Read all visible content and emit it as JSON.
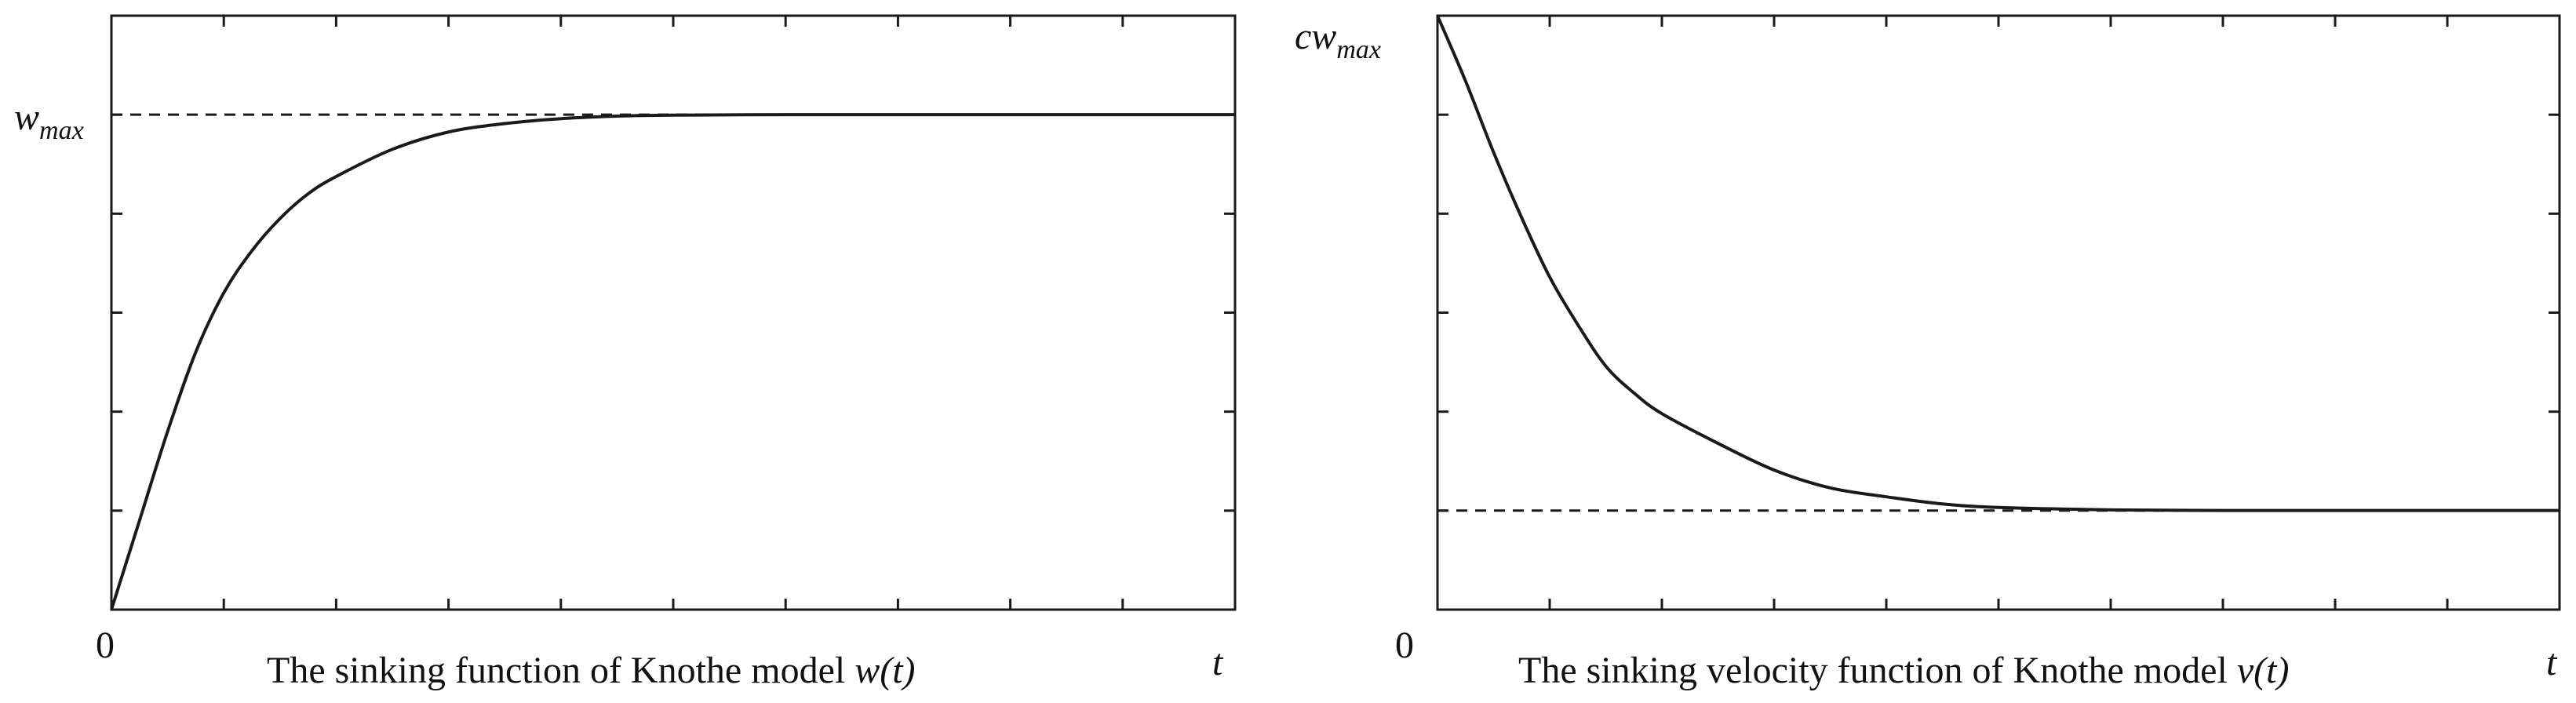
{
  "chart_data": [
    {
      "type": "line",
      "title": "The sinking function of Knothe model w(t)",
      "caption_prefix": "The sinking function of Knothe model ",
      "caption_func": "w(t)",
      "xlabel": "t",
      "origin_label": "0",
      "ylabel_top_base": "w",
      "ylabel_top_sub": "max",
      "xlim": [
        0,
        10
      ],
      "ylim": [
        0,
        1.2
      ],
      "x_ticks": [
        1,
        2,
        3,
        4,
        5,
        6,
        7,
        8,
        9
      ],
      "y_ticks": [
        0.2,
        0.4,
        0.6,
        0.8,
        1.0
      ],
      "reference_line_y": 1.0,
      "series": [
        {
          "name": "w(t)",
          "x": [
            0,
            0.25,
            0.5,
            0.75,
            1.0,
            1.25,
            1.5,
            1.75,
            2.0,
            2.5,
            3.0,
            3.5,
            4.0,
            4.5,
            5.0,
            6.0,
            7.0,
            8.0,
            9.0,
            10.0
          ],
          "y": [
            0,
            0.18,
            0.36,
            0.52,
            0.64,
            0.725,
            0.79,
            0.84,
            0.875,
            0.93,
            0.965,
            0.982,
            0.992,
            0.997,
            0.999,
            1.0,
            1.0,
            1.0,
            1.0,
            1.0
          ]
        }
      ]
    },
    {
      "type": "line",
      "title": "The sinking velocity function of Knothe model v(t)",
      "caption_prefix": "The sinking velocity function of Knothe model ",
      "caption_func": "v(t)",
      "xlabel": "t",
      "origin_label": "0",
      "ylabel_top_base": "cw",
      "ylabel_top_sub": "max",
      "xlim": [
        0,
        10
      ],
      "ylim": [
        0,
        1.0
      ],
      "x_ticks": [
        1,
        2,
        3,
        4,
        5,
        6,
        7,
        8,
        9
      ],
      "y_ticks": [
        0.1667,
        0.3333,
        0.5,
        0.6667,
        0.8333
      ],
      "reference_line_y": 0.1667,
      "series": [
        {
          "name": "v(t)",
          "x": [
            0,
            0.25,
            0.5,
            0.75,
            1.0,
            1.25,
            1.5,
            1.75,
            2.0,
            2.5,
            3.0,
            3.5,
            4.0,
            4.5,
            5.0,
            6.0,
            7.0,
            8.0,
            9.0,
            10.0
          ],
          "y": [
            1.0,
            0.89,
            0.77,
            0.66,
            0.56,
            0.48,
            0.41,
            0.365,
            0.33,
            0.28,
            0.235,
            0.205,
            0.19,
            0.178,
            0.172,
            0.168,
            0.167,
            0.167,
            0.167,
            0.167
          ]
        }
      ]
    }
  ]
}
